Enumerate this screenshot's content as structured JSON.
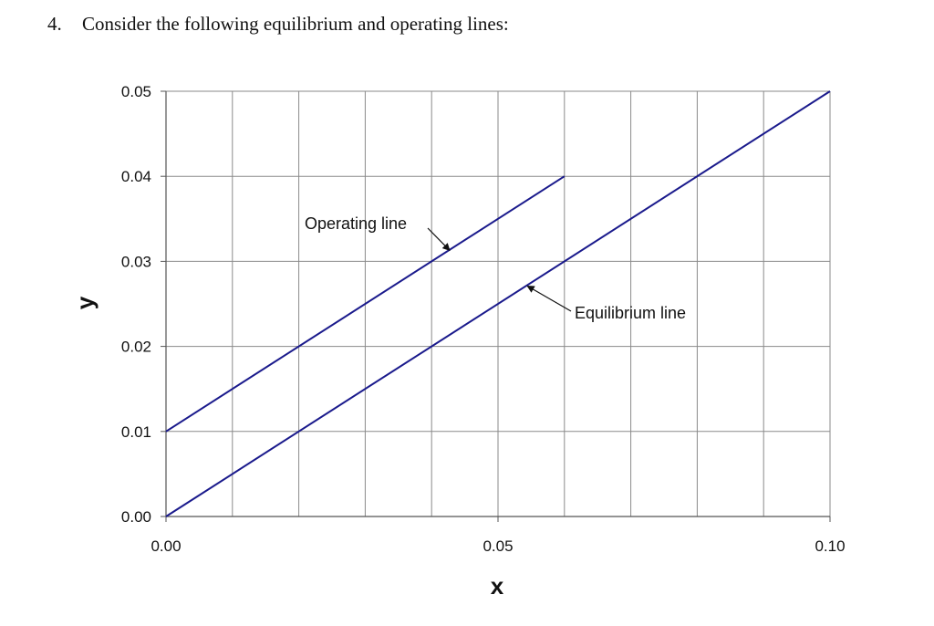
{
  "question": {
    "number": "4.",
    "text": "Consider the following equilibrium and operating lines:"
  },
  "chart_data": {
    "type": "line",
    "xlabel": "x",
    "ylabel": "y",
    "xlim": [
      0.0,
      0.1
    ],
    "ylim": [
      0.0,
      0.05
    ],
    "x_ticks": [
      0.0,
      0.05,
      0.1
    ],
    "x_tick_labels": [
      "0.00",
      "0.05",
      "0.10"
    ],
    "y_ticks": [
      0.0,
      0.01,
      0.02,
      0.03,
      0.04,
      0.05
    ],
    "y_tick_labels": [
      "0.00",
      "0.01",
      "0.02",
      "0.03",
      "0.04",
      "0.05"
    ],
    "x_gridlines": [
      0.01,
      0.02,
      0.03,
      0.04,
      0.05,
      0.06,
      0.07,
      0.08,
      0.09,
      0.1
    ],
    "y_gridlines": [
      0.01,
      0.02,
      0.03,
      0.04,
      0.05
    ],
    "grid": true,
    "line_color": "#1a1a8c",
    "series": [
      {
        "name": "Operating line",
        "x": [
          0.0,
          0.06
        ],
        "y": [
          0.01,
          0.04
        ]
      },
      {
        "name": "Equilibrium line",
        "x": [
          0.0,
          0.1
        ],
        "y": [
          0.0,
          0.05
        ]
      }
    ],
    "annotations": [
      {
        "text": "Operating line",
        "points_to": [
          0.043,
          0.0315
        ]
      },
      {
        "text": "Equilibrium line",
        "points_to": [
          0.054,
          0.027
        ]
      }
    ]
  }
}
